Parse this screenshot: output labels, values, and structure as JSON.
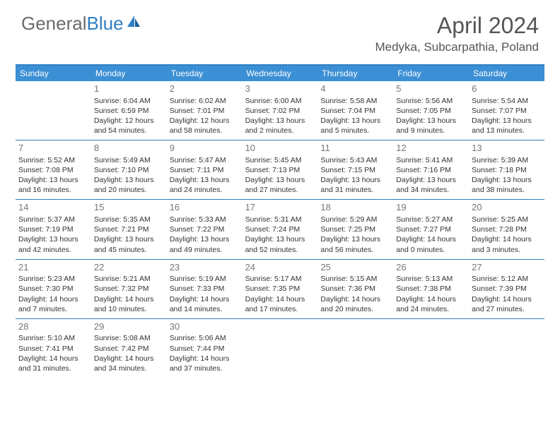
{
  "logo": {
    "text1": "General",
    "text2": "Blue"
  },
  "title": "April 2024",
  "location": "Medyka, Subcarpathia, Poland",
  "colors": {
    "header_bg": "#3b8fd4",
    "border": "#2f7fc4",
    "text": "#333333",
    "muted": "#777777",
    "logo_gray": "#6b6b6b",
    "logo_blue": "#2f7fc4"
  },
  "day_labels": [
    "Sunday",
    "Monday",
    "Tuesday",
    "Wednesday",
    "Thursday",
    "Friday",
    "Saturday"
  ],
  "weeks": [
    [
      null,
      {
        "n": "1",
        "sr": "6:04 AM",
        "ss": "6:59 PM",
        "dl": "12 hours and 54 minutes."
      },
      {
        "n": "2",
        "sr": "6:02 AM",
        "ss": "7:01 PM",
        "dl": "12 hours and 58 minutes."
      },
      {
        "n": "3",
        "sr": "6:00 AM",
        "ss": "7:02 PM",
        "dl": "13 hours and 2 minutes."
      },
      {
        "n": "4",
        "sr": "5:58 AM",
        "ss": "7:04 PM",
        "dl": "13 hours and 5 minutes."
      },
      {
        "n": "5",
        "sr": "5:56 AM",
        "ss": "7:05 PM",
        "dl": "13 hours and 9 minutes."
      },
      {
        "n": "6",
        "sr": "5:54 AM",
        "ss": "7:07 PM",
        "dl": "13 hours and 13 minutes."
      }
    ],
    [
      {
        "n": "7",
        "sr": "5:52 AM",
        "ss": "7:08 PM",
        "dl": "13 hours and 16 minutes."
      },
      {
        "n": "8",
        "sr": "5:49 AM",
        "ss": "7:10 PM",
        "dl": "13 hours and 20 minutes."
      },
      {
        "n": "9",
        "sr": "5:47 AM",
        "ss": "7:11 PM",
        "dl": "13 hours and 24 minutes."
      },
      {
        "n": "10",
        "sr": "5:45 AM",
        "ss": "7:13 PM",
        "dl": "13 hours and 27 minutes."
      },
      {
        "n": "11",
        "sr": "5:43 AM",
        "ss": "7:15 PM",
        "dl": "13 hours and 31 minutes."
      },
      {
        "n": "12",
        "sr": "5:41 AM",
        "ss": "7:16 PM",
        "dl": "13 hours and 34 minutes."
      },
      {
        "n": "13",
        "sr": "5:39 AM",
        "ss": "7:18 PM",
        "dl": "13 hours and 38 minutes."
      }
    ],
    [
      {
        "n": "14",
        "sr": "5:37 AM",
        "ss": "7:19 PM",
        "dl": "13 hours and 42 minutes."
      },
      {
        "n": "15",
        "sr": "5:35 AM",
        "ss": "7:21 PM",
        "dl": "13 hours and 45 minutes."
      },
      {
        "n": "16",
        "sr": "5:33 AM",
        "ss": "7:22 PM",
        "dl": "13 hours and 49 minutes."
      },
      {
        "n": "17",
        "sr": "5:31 AM",
        "ss": "7:24 PM",
        "dl": "13 hours and 52 minutes."
      },
      {
        "n": "18",
        "sr": "5:29 AM",
        "ss": "7:25 PM",
        "dl": "13 hours and 56 minutes."
      },
      {
        "n": "19",
        "sr": "5:27 AM",
        "ss": "7:27 PM",
        "dl": "14 hours and 0 minutes."
      },
      {
        "n": "20",
        "sr": "5:25 AM",
        "ss": "7:28 PM",
        "dl": "14 hours and 3 minutes."
      }
    ],
    [
      {
        "n": "21",
        "sr": "5:23 AM",
        "ss": "7:30 PM",
        "dl": "14 hours and 7 minutes."
      },
      {
        "n": "22",
        "sr": "5:21 AM",
        "ss": "7:32 PM",
        "dl": "14 hours and 10 minutes."
      },
      {
        "n": "23",
        "sr": "5:19 AM",
        "ss": "7:33 PM",
        "dl": "14 hours and 14 minutes."
      },
      {
        "n": "24",
        "sr": "5:17 AM",
        "ss": "7:35 PM",
        "dl": "14 hours and 17 minutes."
      },
      {
        "n": "25",
        "sr": "5:15 AM",
        "ss": "7:36 PM",
        "dl": "14 hours and 20 minutes."
      },
      {
        "n": "26",
        "sr": "5:13 AM",
        "ss": "7:38 PM",
        "dl": "14 hours and 24 minutes."
      },
      {
        "n": "27",
        "sr": "5:12 AM",
        "ss": "7:39 PM",
        "dl": "14 hours and 27 minutes."
      }
    ],
    [
      {
        "n": "28",
        "sr": "5:10 AM",
        "ss": "7:41 PM",
        "dl": "14 hours and 31 minutes."
      },
      {
        "n": "29",
        "sr": "5:08 AM",
        "ss": "7:42 PM",
        "dl": "14 hours and 34 minutes."
      },
      {
        "n": "30",
        "sr": "5:06 AM",
        "ss": "7:44 PM",
        "dl": "14 hours and 37 minutes."
      },
      null,
      null,
      null,
      null
    ]
  ],
  "labels": {
    "sunrise": "Sunrise:",
    "sunset": "Sunset:",
    "daylight": "Daylight:"
  }
}
